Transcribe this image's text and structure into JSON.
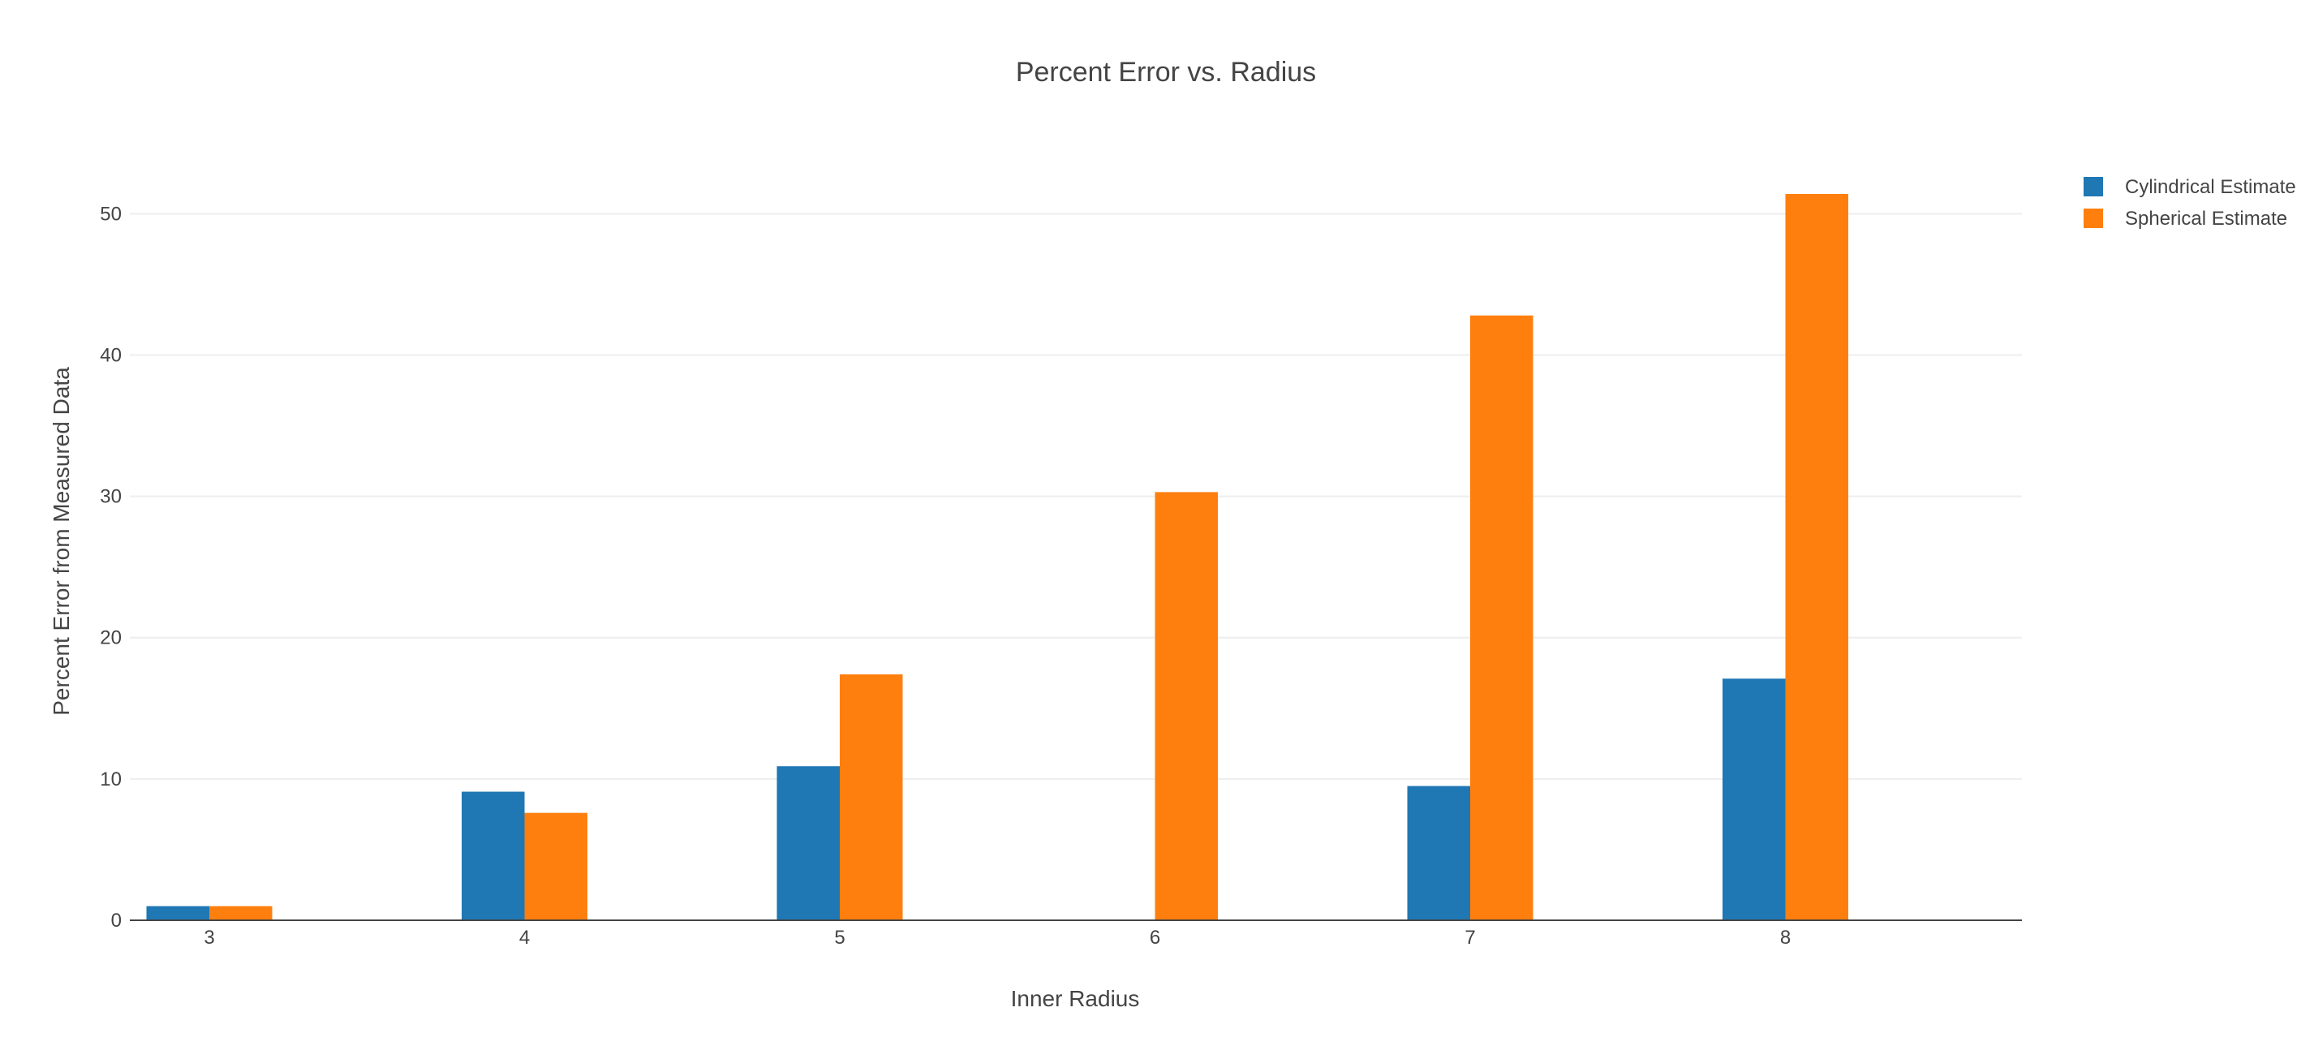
{
  "chart_data": {
    "type": "bar",
    "title": "Percent Error vs. Radius",
    "xlabel": "Inner Radius",
    "ylabel": "Percent Error from Measured Data",
    "categories": [
      "3",
      "4",
      "5",
      "6",
      "7",
      "8"
    ],
    "yticks": [
      "0",
      "10",
      "20",
      "30",
      "40",
      "50"
    ],
    "ylim": [
      0,
      54.5
    ],
    "grid": true,
    "legend_position": "top-right",
    "series": [
      {
        "name": "Cylindrical Estimate",
        "color": "#1f77b4",
        "values": [
          1.0,
          9.1,
          10.9,
          0,
          9.5,
          17.1
        ]
      },
      {
        "name": "Spherical Estimate",
        "color": "#ff7f0e",
        "values": [
          1.0,
          7.6,
          17.4,
          30.3,
          42.8,
          51.4
        ]
      }
    ]
  }
}
